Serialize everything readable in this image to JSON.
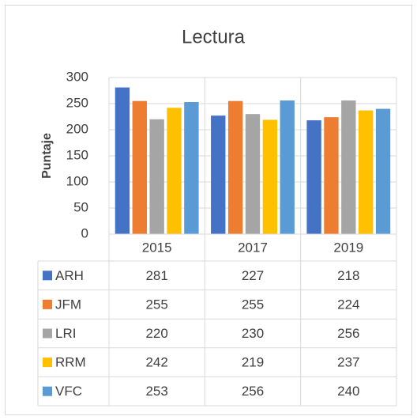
{
  "chart_data": {
    "type": "bar",
    "title": "Lectura",
    "y_label": "Puntaje",
    "categories": [
      "2015",
      "2017",
      "2019"
    ],
    "series": [
      {
        "name": "ARH",
        "color": "#4472c4",
        "values": [
          281,
          227,
          218
        ]
      },
      {
        "name": "JFM",
        "color": "#ed7d31",
        "values": [
          255,
          255,
          224
        ]
      },
      {
        "name": "LRI",
        "color": "#a5a5a5",
        "values": [
          220,
          230,
          256
        ]
      },
      {
        "name": "RRM",
        "color": "#ffc000",
        "values": [
          242,
          219,
          237
        ]
      },
      {
        "name": "VFC",
        "color": "#5b9bd5",
        "values": [
          253,
          256,
          240
        ]
      }
    ],
    "ylim": [
      0,
      300
    ],
    "yticks": [
      0,
      50,
      100,
      150,
      200,
      250,
      300
    ],
    "grid": true,
    "data_table": true
  }
}
